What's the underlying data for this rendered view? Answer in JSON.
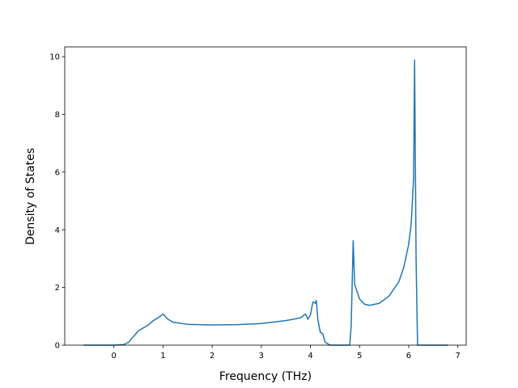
{
  "chart_data": {
    "type": "line",
    "xlabel": "Frequency (THz)",
    "ylabel": "Density of States",
    "x": [
      -0.62,
      0,
      0.2,
      0.3,
      0.4,
      0.5,
      0.6,
      0.7,
      0.8,
      0.9,
      1.0,
      1.1,
      1.2,
      1.5,
      2,
      2.5,
      3,
      3.5,
      3.8,
      3.9,
      3.95,
      4.0,
      4.05,
      4.1,
      4.12,
      4.15,
      4.2,
      4.25,
      4.3,
      4.4,
      4.5,
      4.8,
      4.83,
      4.87,
      4.9,
      5.0,
      5.1,
      5.2,
      5.4,
      5.6,
      5.8,
      5.9,
      6.0,
      6.05,
      6.1,
      6.12,
      6.15,
      6.18,
      6.2,
      6.8
    ],
    "series": [
      {
        "color": "#1f77b4",
        "values": [
          0,
          0,
          0.02,
          0.1,
          0.3,
          0.5,
          0.6,
          0.7,
          0.85,
          0.95,
          1.08,
          0.9,
          0.8,
          0.72,
          0.7,
          0.71,
          0.75,
          0.85,
          0.95,
          1.08,
          0.9,
          1.05,
          1.5,
          1.45,
          1.55,
          0.9,
          0.45,
          0.4,
          0.1,
          0,
          0,
          0,
          0.7,
          3.62,
          2.1,
          1.6,
          1.42,
          1.38,
          1.45,
          1.7,
          2.2,
          2.7,
          3.5,
          4.2,
          5.8,
          9.88,
          3.0,
          0,
          0,
          0
        ]
      }
    ],
    "xlim": [
      -1.0,
      7.17
    ],
    "ylim": [
      0,
      10.34
    ],
    "xticks": [
      0,
      1,
      2,
      3,
      4,
      5,
      6,
      7
    ],
    "yticks": [
      0,
      2,
      4,
      6,
      8,
      10
    ]
  }
}
